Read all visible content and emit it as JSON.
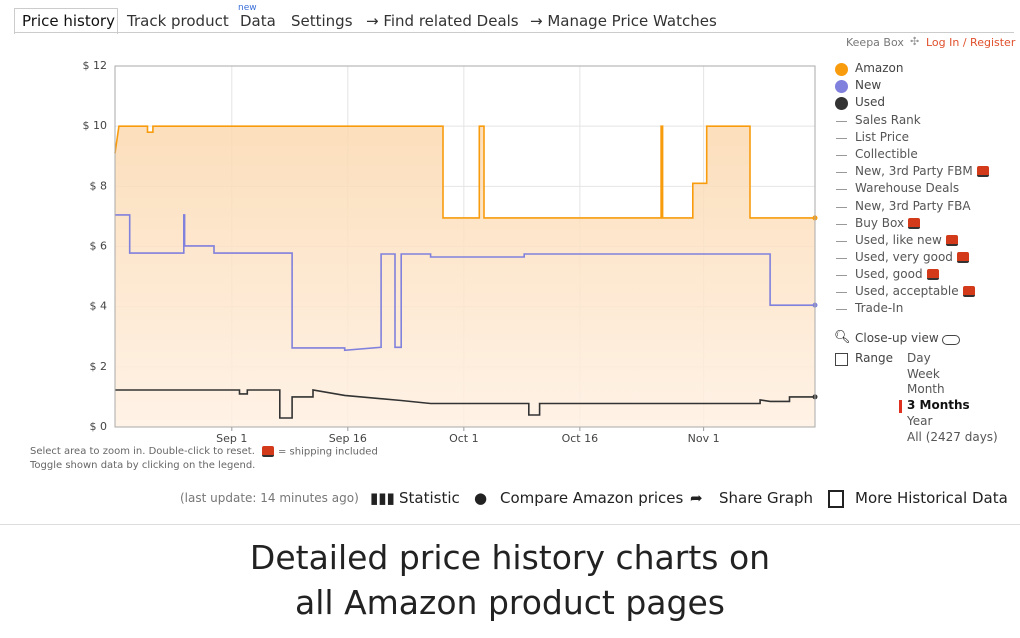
{
  "tabs": [
    "Price history",
    "Track product",
    "Data",
    "Settings",
    "→ Find related Deals",
    "→ Manage Price Watches"
  ],
  "data_badge": "new",
  "header_links": {
    "box": "Keepa Box",
    "login": "Log In / Register"
  },
  "chart_data": {
    "type": "line",
    "xlim": [
      -15.1,
      75.4
    ],
    "xticks": [
      {
        "value": 0,
        "label": "Sep 1"
      },
      {
        "value": 15,
        "label": "Sep 16"
      },
      {
        "value": 30,
        "label": "Oct 1"
      },
      {
        "value": 45,
        "label": "Oct 16"
      },
      {
        "value": 61,
        "label": "Nov 1"
      }
    ],
    "ylim": [
      0,
      12
    ],
    "yticks": [
      {
        "value": 0,
        "label": "$ 0"
      },
      {
        "value": 2,
        "label": "$ 2"
      },
      {
        "value": 4,
        "label": "$ 4"
      },
      {
        "value": 6,
        "label": "$ 6"
      },
      {
        "value": 8,
        "label": "$ 8"
      },
      {
        "value": 10,
        "label": "$ 10"
      },
      {
        "value": 12,
        "label": "$ 12"
      }
    ],
    "grid": true,
    "series": [
      {
        "name": "Amazon",
        "color": "#f89c0e",
        "fill": true,
        "x": [
          -15.1,
          -14.6,
          -10.9,
          -10.9,
          -10.2,
          -10.2,
          27.3,
          27.3,
          32.0,
          32.0,
          32.6,
          32.6,
          55.5,
          55.5,
          55.7,
          55.7,
          59.6,
          59.6,
          61.4,
          61.4,
          67.0,
          67.0,
          75.4
        ],
        "values": [
          9.1,
          10,
          10,
          9.8,
          9.8,
          10,
          10,
          6.95,
          6.95,
          10,
          10,
          6.95,
          6.95,
          10,
          10,
          6.95,
          6.95,
          8.1,
          8.1,
          10,
          10,
          6.95,
          6.95
        ]
      },
      {
        "name": "New",
        "color": "#8080dd",
        "x": [
          -15.1,
          -13.2,
          -13.2,
          -6.2,
          -6.2,
          -6.1,
          -6.1,
          -2.3,
          -2.3,
          7.8,
          7.8,
          14.6,
          14.6,
          19.3,
          19.3,
          21.1,
          21.1,
          21.9,
          21.9,
          25.7,
          25.7,
          37.8,
          37.8,
          69.6,
          69.6,
          75.4
        ],
        "values": [
          7.05,
          7.05,
          5.78,
          5.78,
          7.05,
          7.05,
          6.02,
          6.02,
          5.78,
          5.78,
          2.63,
          2.63,
          2.55,
          2.65,
          5.75,
          5.75,
          2.65,
          2.65,
          5.75,
          5.75,
          5.65,
          5.65,
          5.75,
          5.75,
          4.05,
          4.05
        ]
      },
      {
        "name": "Used",
        "color": "#333333",
        "x": [
          -15.1,
          1.0,
          1.0,
          2.0,
          2.0,
          6.2,
          6.2,
          7.8,
          7.8,
          10.5,
          10.5,
          14.6,
          21.9,
          25.7,
          37.8,
          38.4,
          38.4,
          39.8,
          39.8,
          68.3,
          68.3,
          69.6,
          72.1,
          72.1,
          75.4
        ],
        "values": [
          1.23,
          1.23,
          1.1,
          1.1,
          1.23,
          1.23,
          0.3,
          0.3,
          1.0,
          1.0,
          1.23,
          1.05,
          0.88,
          0.78,
          0.78,
          0.78,
          0.4,
          0.4,
          0.78,
          0.78,
          0.9,
          0.85,
          0.85,
          1.0,
          1.0
        ]
      }
    ]
  },
  "legend_more": [
    "Sales Rank",
    "List Price",
    "Collectible",
    "New, 3rd Party FBM",
    "Warehouse Deals",
    "New, 3rd Party FBA",
    "Buy Box",
    "Used, like new",
    "Used, very good",
    "Used, good",
    "Used, acceptable",
    "Trade-In"
  ],
  "controls": {
    "closeup": "Close-up view",
    "range": "Range",
    "range_options": [
      "Day",
      "Week",
      "Month",
      "3 Months",
      "Year",
      "All (2427 days)"
    ],
    "selected_range": 3
  },
  "hints": {
    "zoom": "Select area to zoom in. Double-click to reset.",
    "toggle": "Toggle shown data by clicking on the legend.",
    "shipping": "= shipping included"
  },
  "toolbar": {
    "last_update": "(last update: 14 minutes ago)",
    "statistic": "Statistic",
    "compare": "Compare Amazon prices",
    "share": "Share Graph",
    "more": "More Historical Data"
  },
  "caption": [
    "Detailed price history charts on",
    "all Amazon product pages"
  ]
}
